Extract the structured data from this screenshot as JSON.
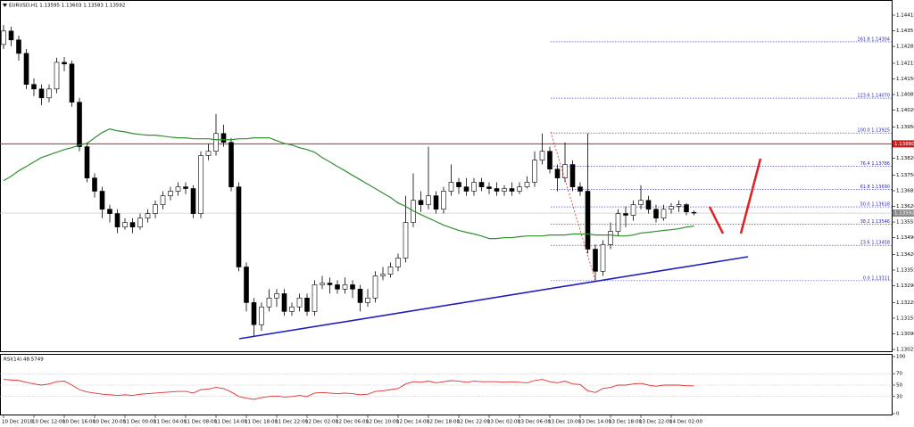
{
  "chart_data": {
    "type": "candlestick",
    "title": "EURUSD,H1 1.13595 1.13603 1.13583 1.13592",
    "categories": [
      "10 Dec 2018",
      null,
      null,
      null,
      "10 Dec 12:00",
      null,
      null,
      null,
      "10 Dec 16:00",
      null,
      null,
      null,
      "10 Dec 20:00",
      null,
      null,
      null,
      "11 Dec 00:00",
      null,
      null,
      null,
      "11 Dec 04:00",
      null,
      null,
      null,
      "11 Dec 08:00",
      null,
      null,
      null,
      "11 Dec 14:00",
      null,
      null,
      null,
      "11 Dec 18:00",
      null,
      null,
      null,
      "11 Dec 22:00",
      null,
      null,
      null,
      "12 Dec 02:00",
      null,
      null,
      null,
      "12 Dec 06:00",
      null,
      null,
      null,
      "12 Dec 10:00",
      null,
      null,
      null,
      "12 Dec 14:00",
      null,
      null,
      null,
      "12 Dec 18:00",
      null,
      null,
      null,
      "12 Dec 22:00",
      null,
      null,
      null,
      "13 Dec 02:00",
      null,
      null,
      null,
      "13 Dec 06:00",
      null,
      null,
      null,
      "13 Dec 10:00",
      null,
      null,
      null,
      "13 Dec 14:00",
      null,
      null,
      null,
      "13 Dec 18:00",
      null,
      null,
      null,
      "13 Dec 22:00",
      null,
      null,
      null,
      "14 Dec 02:00",
      null,
      null,
      null
    ],
    "open": [
      1.14293,
      1.14349,
      1.14312,
      1.14256,
      1.14127,
      1.14108,
      1.14071,
      1.14108,
      1.14219,
      1.14212,
      1.14053,
      1.13868,
      1.13738,
      1.13683,
      1.13608,
      1.1359,
      1.13534,
      1.13553,
      1.13534,
      1.13571,
      1.1359,
      1.13627,
      1.13664,
      1.13683,
      1.13701,
      1.13694,
      1.1359,
      1.13831,
      1.13849,
      1.13923,
      1.13886,
      1.13701,
      1.13368,
      1.1322,
      1.13128,
      1.13202,
      1.13239,
      1.13257,
      1.13183,
      1.13202,
      1.13239,
      1.13183,
      1.13294,
      1.13301,
      1.13294,
      1.13276,
      1.13294,
      1.13276,
      1.1322,
      1.13239,
      1.13331,
      1.13338,
      1.13368,
      1.13405,
      1.13553,
      1.13645,
      1.13627,
      1.13664,
      1.13608,
      1.13683,
      1.1372,
      1.13701,
      1.13683,
      1.1372,
      1.13701,
      1.13694,
      1.13683,
      1.13694,
      1.13683,
      1.13701,
      1.1372,
      1.13812,
      1.13849,
      1.13775,
      1.13738,
      1.13794,
      1.13701,
      1.13683,
      1.13442,
      1.1335,
      1.13461,
      1.13516,
      1.1359,
      1.13583,
      1.13627,
      1.13645,
      1.13608,
      1.13571,
      1.13608,
      1.1362,
      1.13627,
      1.13595
    ],
    "high": [
      1.14374,
      1.14367,
      1.1433,
      1.14274,
      1.14152,
      1.14127,
      1.14127,
      1.14238,
      1.14241,
      1.14226,
      1.14071,
      1.13886,
      1.13757,
      1.13701,
      1.13627,
      1.13608,
      1.13571,
      1.13571,
      1.1359,
      1.13608,
      1.13645,
      1.13683,
      1.13701,
      1.1372,
      1.1372,
      1.13708,
      1.13849,
      1.13879,
      1.14004,
      1.1396,
      1.13904,
      1.1372,
      1.13387,
      1.13239,
      1.1322,
      1.13276,
      1.13276,
      1.13276,
      1.1322,
      1.13257,
      1.13257,
      1.13313,
      1.13331,
      1.13324,
      1.13313,
      1.13324,
      1.13313,
      1.13294,
      1.13276,
      1.1335,
      1.13368,
      1.13387,
      1.13424,
      1.13664,
      1.13757,
      1.13683,
      1.13868,
      1.13683,
      1.13701,
      1.13794,
      1.13738,
      1.13738,
      1.13738,
      1.13738,
      1.1372,
      1.1372,
      1.13708,
      1.1372,
      1.1372,
      1.13745,
      1.13849,
      1.13923,
      1.13868,
      1.13794,
      1.13886,
      1.13812,
      1.1372,
      1.13923,
      1.13461,
      1.13479,
      1.13553,
      1.13608,
      1.1362,
      1.13645,
      1.13708,
      1.13664,
      1.13627,
      1.13627,
      1.13634,
      1.13645,
      1.13634,
      1.13603
    ],
    "low": [
      1.14274,
      1.14286,
      1.14226,
      1.14108,
      1.14078,
      1.14041,
      1.14053,
      1.1409,
      1.14182,
      1.14034,
      1.13849,
      1.1372,
      1.13657,
      1.13571,
      1.13553,
      1.13509,
      1.13523,
      1.13509,
      1.13523,
      1.13553,
      1.13571,
      1.13608,
      1.13645,
      1.13664,
      1.13671,
      1.13571,
      1.13571,
      1.13812,
      1.13831,
      1.13868,
      1.13683,
      1.1335,
      1.13183,
      1.13079,
      1.13102,
      1.13183,
      1.13202,
      1.13165,
      1.13165,
      1.13183,
      1.13165,
      1.13165,
      1.13276,
      1.13257,
      1.13257,
      1.13257,
      1.13239,
      1.13183,
      1.13202,
      1.1322,
      1.13313,
      1.13324,
      1.1335,
      1.13387,
      1.13534,
      1.13597,
      1.13608,
      1.1359,
      1.1359,
      1.13664,
      1.13671,
      1.13664,
      1.13664,
      1.13683,
      1.13671,
      1.13664,
      1.13664,
      1.13664,
      1.13671,
      1.13694,
      1.13701,
      1.13794,
      1.13757,
      1.13683,
      1.1372,
      1.13683,
      1.13664,
      1.13424,
      1.13313,
      1.13331,
      1.13442,
      1.13497,
      1.13534,
      1.1356,
      1.13608,
      1.1359,
      1.13553,
      1.1356,
      1.1359,
      1.13597,
      1.13583,
      1.13583
    ],
    "close": [
      1.14349,
      1.14312,
      1.14256,
      1.14127,
      1.14108,
      1.14071,
      1.14108,
      1.14219,
      1.14212,
      1.14053,
      1.13868,
      1.13738,
      1.13683,
      1.13608,
      1.1359,
      1.13534,
      1.13553,
      1.13534,
      1.13571,
      1.1359,
      1.13627,
      1.13664,
      1.13683,
      1.13701,
      1.13694,
      1.1359,
      1.13831,
      1.13849,
      1.13923,
      1.13886,
      1.13701,
      1.13368,
      1.1322,
      1.13128,
      1.13202,
      1.13239,
      1.13257,
      1.13183,
      1.13202,
      1.13239,
      1.13183,
      1.13294,
      1.13301,
      1.13294,
      1.13276,
      1.13294,
      1.13276,
      1.1322,
      1.13239,
      1.13331,
      1.13338,
      1.13368,
      1.13405,
      1.13553,
      1.13645,
      1.13627,
      1.13664,
      1.13608,
      1.13683,
      1.1372,
      1.13701,
      1.13683,
      1.1372,
      1.13701,
      1.13694,
      1.13683,
      1.13694,
      1.13683,
      1.13701,
      1.1372,
      1.13812,
      1.13849,
      1.13775,
      1.13738,
      1.13794,
      1.13701,
      1.13683,
      1.13442,
      1.1335,
      1.13461,
      1.13516,
      1.1359,
      1.13583,
      1.13627,
      1.13645,
      1.13608,
      1.13571,
      1.13608,
      1.1362,
      1.13627,
      1.13597,
      1.13592
    ],
    "up_color": "#ffffff",
    "down_color": "#000000",
    "ma": {
      "color": "#2f8f2f",
      "values": [
        1.13727,
        1.13745,
        1.13768,
        1.13786,
        1.13805,
        1.13823,
        1.13834,
        1.13845,
        1.13856,
        1.13864,
        1.13875,
        1.13882,
        1.13905,
        1.13927,
        1.13942,
        1.13934,
        1.1393,
        1.13923,
        1.13919,
        1.13916,
        1.13916,
        1.13912,
        1.13908,
        1.13905,
        1.13905,
        1.13901,
        1.13901,
        1.13901,
        1.13897,
        1.13897,
        1.13897,
        1.13901,
        1.13901,
        1.13905,
        1.13905,
        1.13905,
        1.13893,
        1.13882,
        1.13875,
        1.13864,
        1.13856,
        1.13845,
        1.13823,
        1.13805,
        1.13786,
        1.13768,
        1.13749,
        1.13731,
        1.13712,
        1.13694,
        1.13675,
        1.13657,
        1.13634,
        1.1362,
        1.13601,
        1.13586,
        1.13571,
        1.13557,
        1.13542,
        1.13531,
        1.1352,
        1.13512,
        1.13505,
        1.13497,
        1.13486,
        1.13486,
        1.1349,
        1.1349,
        1.13494,
        1.13497,
        1.13497,
        1.13497,
        1.13501,
        1.13501,
        1.13501,
        1.13505,
        1.13505,
        1.13505,
        1.13501,
        1.13501,
        1.13501,
        1.13497,
        1.13497,
        1.13501,
        1.13509,
        1.13512,
        1.13516,
        1.1352,
        1.13523,
        1.13527,
        1.13534,
        1.13538
      ]
    },
    "ylim": [
      1.13014,
      1.14478
    ],
    "yticks": [
      1.14415,
      1.1435,
      1.14285,
      {
        "value": 1.14215,
        "label": "1.14215"
      },
      {
        "value": 1.1415,
        "label": "1.14150"
      },
      1.14085,
      {
        "value": 1.1402,
        "label": "1.14020"
      },
      {
        "value": 1.1395,
        "label": "1.13950"
      },
      1.13885,
      {
        "value": 1.1382,
        "label": "1.13820"
      },
      {
        "value": 1.1375,
        "label": "1.13750"
      },
      1.13685,
      {
        "value": 1.1362,
        "label": "1.13620"
      },
      1.13555,
      {
        "value": 1.1349,
        "label": "1.13490"
      },
      {
        "value": 1.1342,
        "label": "1.13420"
      },
      1.13355,
      {
        "value": 1.1329,
        "label": "1.13290"
      },
      {
        "value": 1.1322,
        "label": "1.13220"
      },
      1.13155,
      {
        "value": 1.1309,
        "label": "1.13090"
      },
      1.13025
    ],
    "levels": [
      {
        "label": "161.8 1.14304",
        "price": 1.14304
      },
      {
        "label": "123.6 1.14070",
        "price": 1.1407
      },
      {
        "label": "100.0 1.13925",
        "price": 1.13925
      },
      {
        "label": "76.4 1.13786",
        "price": 1.13786
      },
      {
        "label": "61.8 1.13690",
        "price": 1.1369
      },
      {
        "label": "50.0 1.13618",
        "price": 1.13618
      },
      {
        "label": "38.2 1.13546",
        "price": 1.13546
      },
      {
        "label": "23.6 1.13458",
        "price": 1.13458
      },
      {
        "label": "0.0 1.13311",
        "price": 1.13311
      }
    ],
    "level_color": "#2a2ab8",
    "hline": {
      "value": 1.1388,
      "label": "1.13880",
      "color": "#c81e1e"
    },
    "last_price": {
      "value": 1.13592,
      "label": "1.13592",
      "color": "#8a8a8a"
    },
    "indicator": {
      "type": "line",
      "title": "RSI(14) 48.5749",
      "color": "#e03030",
      "ylim": [
        0,
        100
      ],
      "yticks": [
        100,
        70,
        50,
        30,
        0
      ],
      "values": [
        60,
        59,
        58,
        55,
        52,
        50,
        52,
        56,
        57,
        50,
        42,
        38,
        36,
        34,
        33,
        32,
        33,
        32,
        34,
        35,
        36,
        37,
        38,
        39,
        39,
        36,
        42,
        43,
        46,
        44,
        38,
        30,
        27,
        25,
        28,
        30,
        31,
        29,
        30,
        32,
        30,
        36,
        37,
        36,
        35,
        36,
        35,
        33,
        34,
        39,
        40,
        42,
        44,
        52,
        56,
        55,
        57,
        54,
        56,
        58,
        57,
        55,
        57,
        56,
        56,
        56,
        55,
        56,
        55,
        54,
        58,
        60,
        56,
        54,
        57,
        52,
        51,
        40,
        37,
        44,
        46,
        50,
        50,
        52,
        53,
        50,
        48,
        50,
        50,
        50,
        49,
        48.5749
      ]
    }
  }
}
